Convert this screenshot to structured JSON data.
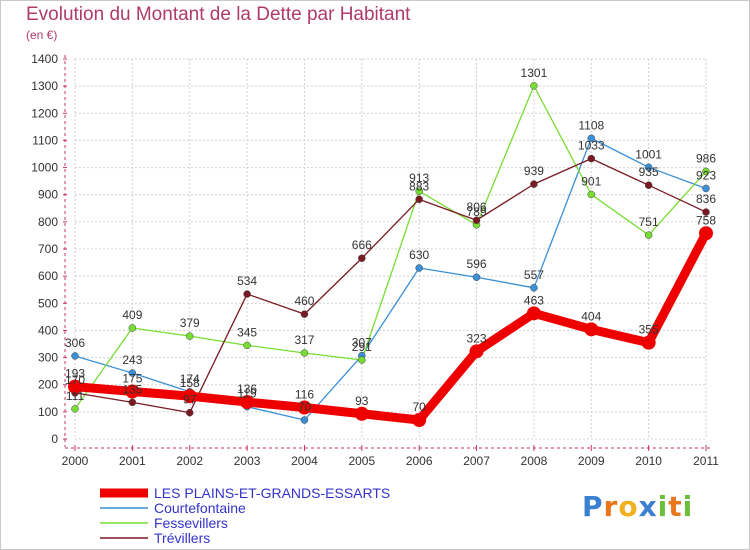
{
  "title": "Evolution du Montant de la Dette par Habitant",
  "unit": "(en €)",
  "logo": {
    "text": "Proxiti",
    "letters": [
      {
        "ch": "P",
        "color": "#3b7fd1"
      },
      {
        "ch": "r",
        "color": "#e8761c"
      },
      {
        "ch": "o",
        "color": "#f2b01e"
      },
      {
        "ch": "x",
        "color": "#3b7fd1"
      },
      {
        "ch": "i",
        "color": "#6bbf3a"
      },
      {
        "ch": "t",
        "color": "#e8761c"
      },
      {
        "ch": "i",
        "color": "#6bbf3a"
      }
    ]
  },
  "chart_data": {
    "type": "line",
    "title": "Evolution du Montant de la Dette par Habitant",
    "ylabel": "(en €)",
    "xlabel": "",
    "x": [
      "2000",
      "2001",
      "2002",
      "2003",
      "2004",
      "2005",
      "2006",
      "2007",
      "2008",
      "2009",
      "2010",
      "2011"
    ],
    "ylim": [
      0,
      1400
    ],
    "yticks": [
      0,
      100,
      200,
      300,
      400,
      500,
      600,
      700,
      800,
      900,
      1000,
      1100,
      1200,
      1300,
      1400
    ],
    "grid": true,
    "legend_position": "bottom-left",
    "series": [
      {
        "name": "LES PLAINS-ET-GRANDS-ESSARTS",
        "color": "#ee0000",
        "thick": true,
        "values": [
          193,
          175,
          158,
          136,
          116,
          93,
          70,
          323,
          463,
          404,
          355,
          758
        ],
        "labels": [
          "193",
          "175",
          "158",
          "136",
          "116",
          "93",
          "70",
          "323",
          "463",
          "404",
          "355",
          "758"
        ]
      },
      {
        "name": "Courtefontaine",
        "color": "#3a8fd6",
        "thick": false,
        "values": [
          306,
          243,
          174,
          119,
          70,
          307,
          630,
          596,
          557,
          1108,
          1001,
          923
        ],
        "labels": [
          "306",
          "243",
          "174",
          "119",
          "70",
          "307",
          "630",
          "596",
          "557",
          "1108",
          "1001",
          "923"
        ]
      },
      {
        "name": "Fessevillers",
        "color": "#77dd33",
        "thick": false,
        "values": [
          111,
          409,
          379,
          345,
          317,
          291,
          913,
          789,
          1301,
          901,
          751,
          986
        ],
        "labels": [
          "111",
          "409",
          "379",
          "345",
          "317",
          "291",
          "913",
          "789",
          "1301",
          "901",
          "751",
          "986"
        ]
      },
      {
        "name": "Trévillers",
        "color": "#7a1a22",
        "thick": false,
        "values": [
          170,
          135,
          97,
          534,
          460,
          666,
          883,
          806,
          939,
          1033,
          935,
          836
        ],
        "labels": [
          "170",
          "135",
          "97",
          "534",
          "460",
          "666",
          "883",
          "806",
          "939",
          "1033",
          "935",
          "836"
        ]
      }
    ]
  }
}
